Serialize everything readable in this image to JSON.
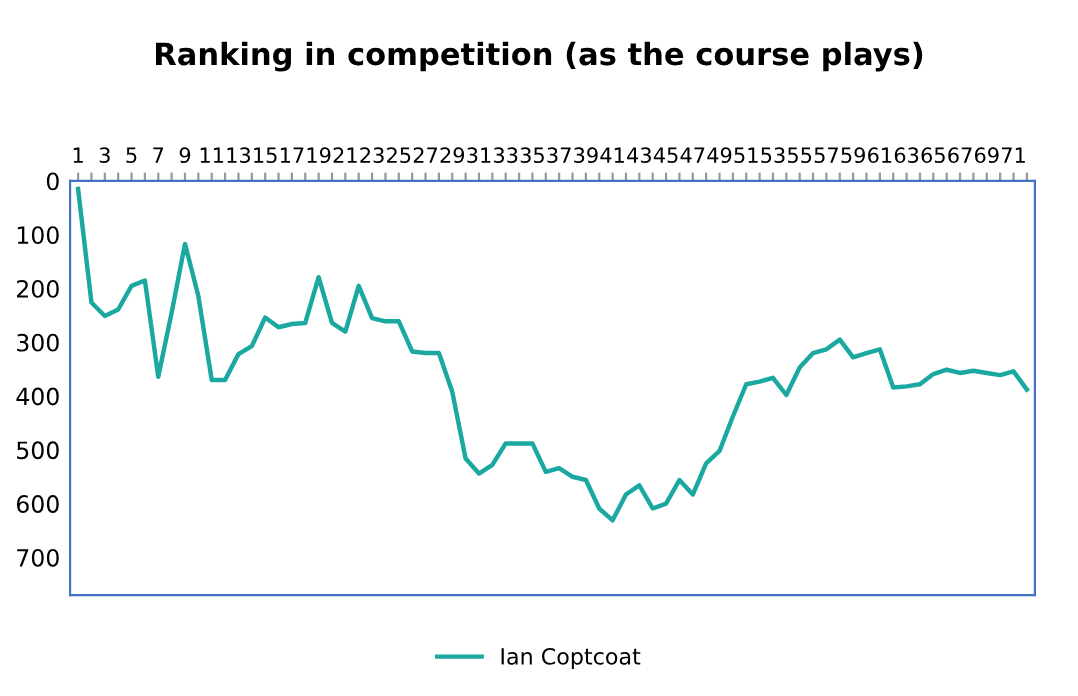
{
  "chart_data": {
    "type": "line",
    "title": "Ranking in competition (as the course plays)",
    "categories": [
      "1",
      null,
      "3",
      null,
      "5",
      null,
      "7",
      null,
      "9",
      null,
      "11",
      null,
      "13",
      null,
      "15",
      null,
      "17",
      null,
      "19",
      null,
      "21",
      null,
      "23",
      null,
      "25",
      null,
      "27",
      null,
      "29",
      null,
      "31",
      null,
      "33",
      null,
      "35",
      null,
      "37",
      null,
      "39",
      null,
      "41",
      null,
      "43",
      null,
      "45",
      null,
      "47",
      null,
      "49",
      null,
      "51",
      null,
      "53",
      null,
      "55",
      null,
      "57",
      null,
      "59",
      null,
      "61",
      null,
      "63",
      null,
      "65",
      null,
      "67",
      null,
      "69",
      null,
      "71",
      null
    ],
    "series": [
      {
        "name": "Ian Coptcoat",
        "color": "#1aa8a0",
        "values": [
          15,
          226,
          251,
          239,
          195,
          185,
          364,
          245,
          117,
          214,
          370,
          370,
          322,
          307,
          254,
          272,
          266,
          264,
          179,
          264,
          280,
          195,
          255,
          261,
          261,
          317,
          320,
          320,
          392,
          516,
          544,
          528,
          488,
          488,
          488,
          541,
          534,
          550,
          556,
          609,
          631,
          583,
          566,
          609,
          600,
          556,
          583,
          525,
          502,
          438,
          378,
          373,
          366,
          398,
          347,
          320,
          313,
          295,
          328,
          320,
          313,
          384,
          382,
          378,
          359,
          351,
          357,
          353,
          357,
          361,
          354,
          388
        ]
      }
    ],
    "ylim": [
      770,
      0
    ],
    "yticks": [
      0,
      100,
      200,
      300,
      400,
      500,
      600,
      700
    ],
    "legend": "bottom",
    "grid": false,
    "marker": "none",
    "line_style": "solid"
  }
}
